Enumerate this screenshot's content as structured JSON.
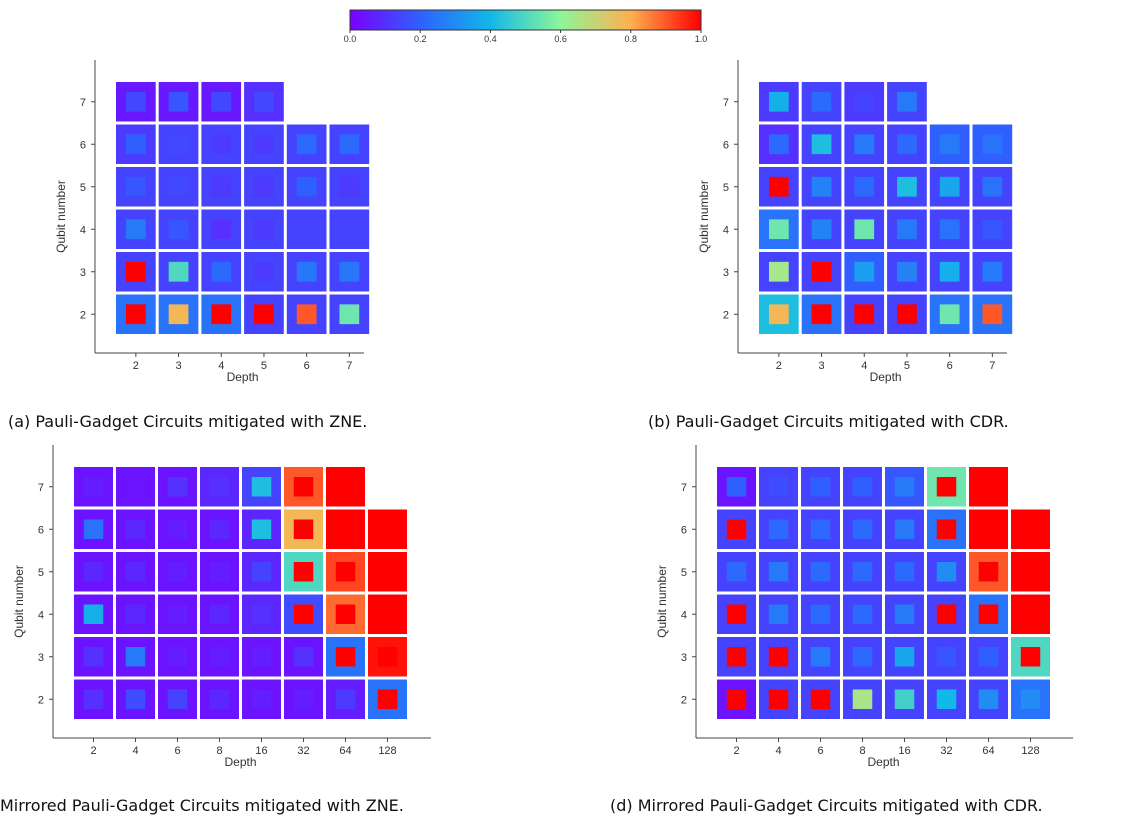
{
  "colorbar": {
    "ticks": [
      "0.0",
      "0.2",
      "0.4",
      "0.6",
      "0.8",
      "1.0"
    ],
    "stops": [
      "#7a00ff",
      "#2f60ff",
      "#12b8e8",
      "#8ef59a",
      "#ffb050",
      "#ff0000"
    ],
    "range": [
      0.0,
      1.0
    ]
  },
  "captions": {
    "a": "(a) Pauli-Gadget Circuits mitigated with ZNE.",
    "b": "(b) Pauli-Gadget Circuits mitigated with CDR.",
    "c": "Mirrored Pauli-Gadget Circuits mitigated with ZNE.",
    "d": "(d) Mirrored Pauli-Gadget Circuits mitigated with CDR."
  },
  "chart_data": [
    {
      "type": "heatmap",
      "panel": "a",
      "xlabel": "Depth",
      "ylabel": "Qubit number",
      "x_ticks": [
        "2",
        "3",
        "4",
        "5",
        "6",
        "7"
      ],
      "y_ticks": [
        "2",
        "3",
        "4",
        "5",
        "6",
        "7"
      ],
      "cell_encoding": "outer square = one value, inner square = second value (0–1 color scale)",
      "outer": [
        [
          0.05,
          0.05,
          0.05,
          0.1,
          null,
          null
        ],
        [
          0.12,
          0.14,
          0.14,
          0.14,
          0.14,
          0.14
        ],
        [
          0.14,
          0.14,
          0.14,
          0.14,
          0.14,
          0.14
        ],
        [
          0.14,
          0.14,
          0.14,
          0.14,
          0.14,
          0.14
        ],
        [
          0.14,
          0.14,
          0.14,
          0.14,
          0.14,
          0.14
        ],
        [
          0.24,
          0.24,
          0.24,
          0.14,
          0.14,
          0.14
        ]
      ],
      "inner": [
        [
          0.15,
          0.18,
          0.15,
          0.15,
          null,
          null
        ],
        [
          0.2,
          0.15,
          0.12,
          0.12,
          0.22,
          0.22
        ],
        [
          0.18,
          0.15,
          0.12,
          0.12,
          0.2,
          0.12
        ],
        [
          0.26,
          0.18,
          0.1,
          0.12,
          0.14,
          0.14
        ],
        [
          1.0,
          0.5,
          0.22,
          0.12,
          0.25,
          0.25
        ],
        [
          1.0,
          0.78,
          1.0,
          1.0,
          0.9,
          0.55
        ]
      ]
    },
    {
      "type": "heatmap",
      "panel": "b",
      "xlabel": "Depth",
      "ylabel": "Qubit number",
      "x_ticks": [
        "2",
        "3",
        "4",
        "5",
        "6",
        "7"
      ],
      "y_ticks": [
        "2",
        "3",
        "4",
        "5",
        "6",
        "7"
      ],
      "outer": [
        [
          0.12,
          0.14,
          0.12,
          0.14,
          null,
          null
        ],
        [
          0.1,
          0.14,
          0.14,
          0.14,
          0.2,
          0.2
        ],
        [
          0.14,
          0.14,
          0.14,
          0.14,
          0.14,
          0.14
        ],
        [
          0.24,
          0.14,
          0.14,
          0.14,
          0.14,
          0.14
        ],
        [
          0.14,
          0.14,
          0.2,
          0.14,
          0.14,
          0.14
        ],
        [
          0.42,
          0.24,
          0.14,
          0.14,
          0.24,
          0.24
        ]
      ],
      "inner": [
        [
          0.38,
          0.22,
          0.14,
          0.26,
          null,
          null
        ],
        [
          0.22,
          0.42,
          0.26,
          0.22,
          0.26,
          0.24
        ],
        [
          1.0,
          0.28,
          0.22,
          0.42,
          0.36,
          0.24
        ],
        [
          0.55,
          0.28,
          0.55,
          0.26,
          0.24,
          0.18
        ],
        [
          0.64,
          1.0,
          0.34,
          0.28,
          0.38,
          0.26
        ],
        [
          0.78,
          1.0,
          1.0,
          1.0,
          0.55,
          0.9
        ]
      ]
    },
    {
      "type": "heatmap",
      "panel": "c",
      "xlabel": "Depth",
      "ylabel": "Qubit number",
      "x_ticks": [
        "2",
        "4",
        "6",
        "8",
        "16",
        "32",
        "64",
        "128"
      ],
      "y_ticks": [
        "2",
        "3",
        "4",
        "5",
        "6",
        "7"
      ],
      "outer": [
        [
          0.04,
          0.04,
          0.04,
          0.08,
          0.14,
          0.9,
          1.0,
          null
        ],
        [
          0.04,
          0.04,
          0.04,
          0.04,
          0.08,
          0.78,
          1.0,
          1.0
        ],
        [
          0.04,
          0.04,
          0.04,
          0.04,
          0.08,
          0.5,
          0.92,
          1.0
        ],
        [
          0.04,
          0.04,
          0.04,
          0.04,
          0.08,
          0.16,
          0.88,
          1.0
        ],
        [
          0.04,
          0.04,
          0.04,
          0.04,
          0.04,
          0.04,
          0.24,
          0.98
        ],
        [
          0.04,
          0.04,
          0.04,
          0.04,
          0.04,
          0.04,
          0.06,
          0.24
        ]
      ],
      "inner": [
        [
          0.06,
          0.04,
          0.1,
          0.1,
          0.42,
          1.0,
          1.0,
          null
        ],
        [
          0.24,
          0.08,
          0.06,
          0.08,
          0.42,
          1.0,
          1.0,
          1.0
        ],
        [
          0.08,
          0.08,
          0.06,
          0.06,
          0.14,
          1.0,
          1.0,
          1.0
        ],
        [
          0.38,
          0.08,
          0.06,
          0.08,
          0.1,
          1.0,
          1.0,
          1.0
        ],
        [
          0.1,
          0.26,
          0.06,
          0.06,
          0.06,
          0.1,
          1.0,
          1.0
        ],
        [
          0.1,
          0.16,
          0.14,
          0.08,
          0.06,
          0.06,
          0.12,
          1.0
        ]
      ]
    },
    {
      "type": "heatmap",
      "panel": "d",
      "xlabel": "Depth",
      "ylabel": "Qubit number",
      "x_ticks": [
        "2",
        "4",
        "6",
        "8",
        "16",
        "32",
        "64",
        "128"
      ],
      "y_ticks": [
        "2",
        "3",
        "4",
        "5",
        "6",
        "7"
      ],
      "outer": [
        [
          0.04,
          0.14,
          0.14,
          0.14,
          0.18,
          0.55,
          1.0,
          null
        ],
        [
          0.14,
          0.14,
          0.14,
          0.14,
          0.14,
          0.24,
          1.0,
          1.0
        ],
        [
          0.14,
          0.14,
          0.14,
          0.14,
          0.14,
          0.14,
          0.9,
          1.0
        ],
        [
          0.14,
          0.14,
          0.14,
          0.14,
          0.14,
          0.14,
          0.24,
          1.0
        ],
        [
          0.14,
          0.14,
          0.14,
          0.14,
          0.14,
          0.14,
          0.14,
          0.5
        ],
        [
          0.04,
          0.14,
          0.14,
          0.14,
          0.14,
          0.14,
          0.14,
          0.24
        ]
      ],
      "inner": [
        [
          0.2,
          0.16,
          0.2,
          0.2,
          0.26,
          1.0,
          1.0,
          null
        ],
        [
          1.0,
          0.22,
          0.22,
          0.22,
          0.26,
          1.0,
          1.0,
          1.0
        ],
        [
          0.22,
          0.26,
          0.22,
          0.22,
          0.22,
          0.3,
          1.0,
          1.0
        ],
        [
          1.0,
          0.26,
          0.22,
          0.22,
          0.26,
          1.0,
          1.0,
          1.0
        ],
        [
          1.0,
          1.0,
          0.26,
          0.22,
          0.36,
          0.18,
          0.2,
          1.0
        ],
        [
          1.0,
          1.0,
          1.0,
          0.65,
          0.48,
          0.4,
          0.3,
          0.3
        ]
      ]
    }
  ]
}
